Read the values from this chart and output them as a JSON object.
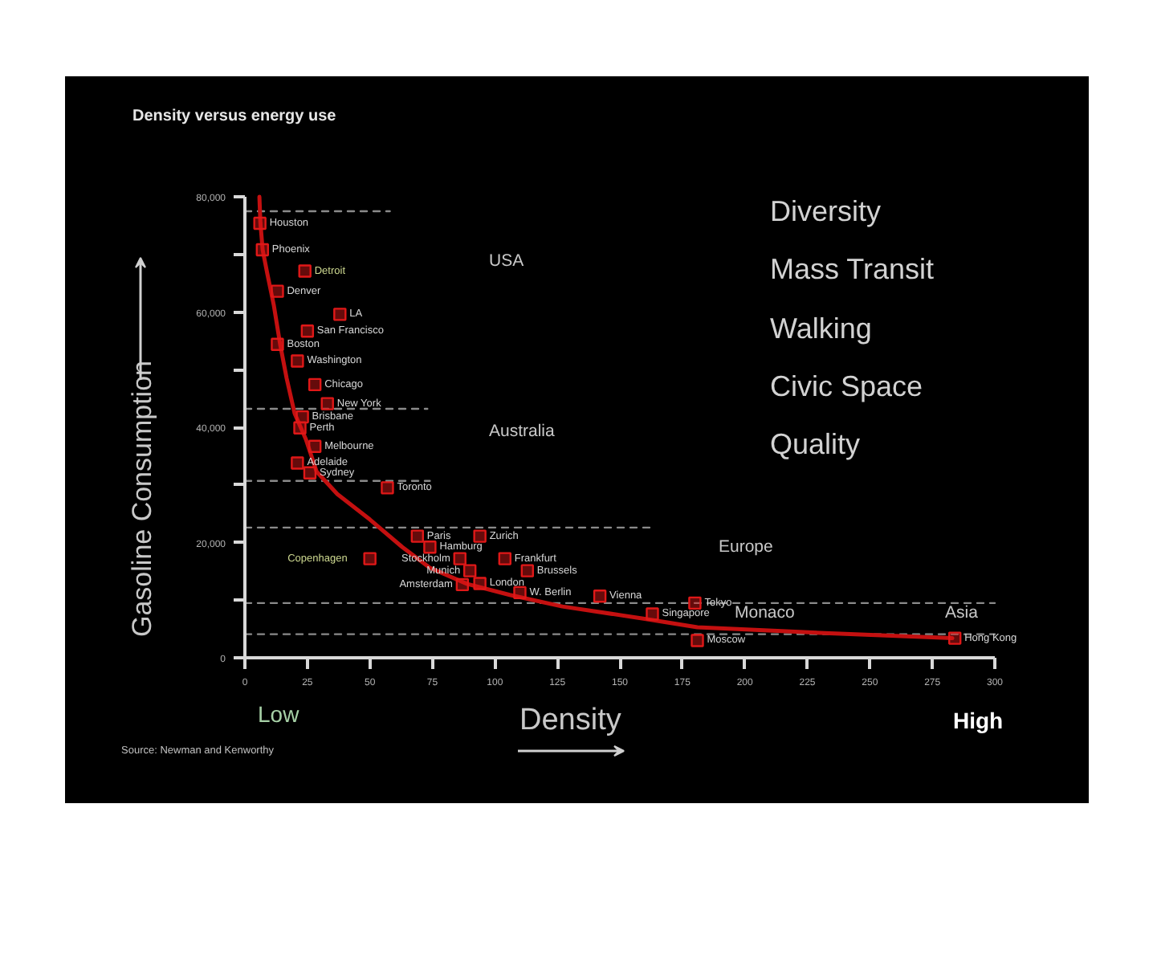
{
  "chart_data": {
    "type": "scatter",
    "title": "Density versus energy use",
    "xlabel": "Density",
    "ylabel": "Gasoline Consumption",
    "xlim": [
      0,
      300
    ],
    "xticks": [
      0,
      25,
      50,
      75,
      100,
      125,
      150,
      175,
      200,
      225,
      250,
      275,
      300
    ],
    "ylim": [
      0,
      80000
    ],
    "yticks": [
      0,
      {
        "value": 10000,
        "label": null
      },
      {
        "value": 20000,
        "label": "20,000"
      },
      {
        "value": 30000,
        "label": null
      },
      {
        "value": 40000,
        "label": "40,000"
      },
      {
        "value": 50000,
        "label": null
      },
      {
        "value": 60000,
        "label": "60,000"
      },
      {
        "value": 70000,
        "label": null
      },
      {
        "value": 80000,
        "label": "80,000"
      }
    ],
    "series": [
      {
        "type": "line",
        "color": "#8a8a8a",
        "line_style": "dashed",
        "x": [
          0,
          58
        ],
        "values": [
          77500,
          77500
        ]
      },
      {
        "type": "line",
        "color": "#8a8a8a",
        "line_style": "dashed",
        "x": [
          0,
          73
        ],
        "values": [
          43200,
          43200
        ]
      },
      {
        "type": "line",
        "color": "#8a8a8a",
        "line_style": "dashed",
        "x": [
          0,
          74
        ],
        "values": [
          30700,
          30700
        ]
      },
      {
        "type": "line",
        "color": "#8a8a8a",
        "line_style": "dashed",
        "x": [
          0,
          164
        ],
        "values": [
          22600,
          22600
        ]
      },
      {
        "type": "line",
        "color": "#8a8a8a",
        "line_style": "dashed",
        "x": [
          0,
          300
        ],
        "values": [
          9500,
          9500
        ]
      },
      {
        "type": "line",
        "color": "#8a8a8a",
        "line_style": "dashed",
        "x": [
          0,
          300
        ],
        "values": [
          4100,
          4100
        ]
      },
      {
        "type": "line",
        "color": "#c41010",
        "line_style": "solid",
        "x": [
          5.8,
          6.2,
          7.1,
          9,
          11.6,
          14.1,
          16.7,
          19.9,
          24.4,
          28.7,
          37,
          50,
          63,
          74,
          89,
          106,
          127,
          161,
          181,
          232,
          283
        ],
        "values": [
          80000,
          75500,
          70800,
          66600,
          61100,
          54400,
          48500,
          42400,
          37900,
          32300,
          28400,
          24000,
          19200,
          15600,
          12800,
          10900,
          8900,
          6700,
          5300,
          4300,
          3400
        ]
      },
      {
        "color": "#e01818",
        "marker": "square",
        "x": [
          6,
          7,
          24,
          13,
          38,
          25,
          13,
          21,
          28,
          33,
          23,
          22,
          28,
          21,
          26,
          57,
          69,
          94,
          74,
          50,
          86,
          104,
          90,
          113,
          87,
          94,
          110,
          142,
          180,
          163,
          181,
          284
        ],
        "values": [
          75400,
          70800,
          67100,
          63600,
          59600,
          56700,
          54400,
          51500,
          47400,
          44100,
          41800,
          39900,
          36700,
          33800,
          32100,
          29500,
          21100,
          21100,
          19200,
          17200,
          17200,
          17200,
          15100,
          15100,
          12700,
          12900,
          11300,
          10700,
          9500,
          7600,
          3000,
          3400
        ]
      }
    ],
    "annotations": [
      "USA",
      "Australia",
      "Europe",
      "Asia",
      "Monaco",
      "Diversity",
      "Mass Transit",
      "Walking",
      "Civic Space",
      "Quality",
      "Low",
      "High",
      "Source: Newman and Kenworthy",
      {
        "text": "Houston",
        "x": 6,
        "y": 75400
      },
      {
        "text": "Phoenix",
        "x": 7,
        "y": 70800
      },
      {
        "text": "Detroit",
        "x": 24,
        "y": 67100
      },
      {
        "text": "Denver",
        "x": 13,
        "y": 63600
      },
      {
        "text": "LA",
        "x": 38,
        "y": 59600
      },
      {
        "text": "San Francisco",
        "x": 25,
        "y": 56700
      },
      {
        "text": "Boston",
        "x": 13,
        "y": 54400
      },
      {
        "text": "Washington",
        "x": 21,
        "y": 51500
      },
      {
        "text": "Chicago",
        "x": 28,
        "y": 47400
      },
      {
        "text": "New York",
        "x": 33,
        "y": 44100
      },
      {
        "text": "Brisbane",
        "x": 23,
        "y": 41800
      },
      {
        "text": "Perth",
        "x": 22,
        "y": 39900
      },
      {
        "text": "Melbourne",
        "x": 28,
        "y": 36700
      },
      {
        "text": "Adelaide",
        "x": 21,
        "y": 33800
      },
      {
        "text": "Sydney",
        "x": 26,
        "y": 32100
      },
      {
        "text": "Toronto",
        "x": 57,
        "y": 29500
      },
      {
        "text": "Paris",
        "x": 69,
        "y": 21100
      },
      {
        "text": "Zurich",
        "x": 94,
        "y": 21100
      },
      {
        "text": "Hamburg",
        "x": 74,
        "y": 19200
      },
      {
        "text": "Copenhagen",
        "x": 50,
        "y": 17200
      },
      {
        "text": "Stockholm",
        "x": 86,
        "y": 17200
      },
      {
        "text": "Frankfurt",
        "x": 104,
        "y": 17200
      },
      {
        "text": "Munich",
        "x": 90,
        "y": 15100
      },
      {
        "text": "Brussels",
        "x": 113,
        "y": 15100
      },
      {
        "text": "Amsterdam",
        "x": 87,
        "y": 12700
      },
      {
        "text": "London",
        "x": 94,
        "y": 12900
      },
      {
        "text": "W. Berlin",
        "x": 110,
        "y": 11300
      },
      {
        "text": "Vienna",
        "x": 142,
        "y": 10700
      },
      {
        "text": "Tokyo",
        "x": 180,
        "y": 9500
      },
      {
        "text": "Singapore",
        "x": 163,
        "y": 7600
      },
      {
        "text": "Moscow",
        "x": 181,
        "y": 3000
      },
      {
        "text": "Hong Kong",
        "x": 284,
        "y": 3400
      }
    ]
  }
}
